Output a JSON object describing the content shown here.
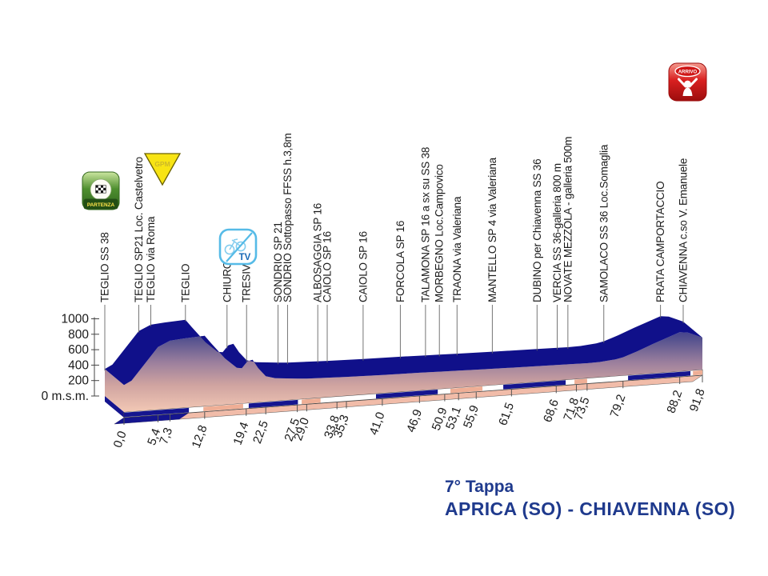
{
  "title": {
    "line1": "7° Tappa",
    "line2": "APRICA (SO) - CHIAVENNA (SO)"
  },
  "markers": {
    "partenza": {
      "label": "PARTENZA"
    },
    "gpm": {
      "label": "GPM"
    },
    "tv": {
      "label": "TV"
    },
    "arrivo": {
      "label": "ARRIVO"
    }
  },
  "chart_data": {
    "type": "area",
    "title": "7° Tappa APRICA (SO) - CHIAVENNA (SO) - altimetria",
    "ylabel": "m.s.m.",
    "ylim": [
      0,
      1000
    ],
    "xlim": [
      0,
      91.8
    ],
    "grid": false,
    "yticks": [
      {
        "value": 1000,
        "label": "1000"
      },
      {
        "value": 800,
        "label": "800"
      },
      {
        "value": 600,
        "label": "600"
      },
      {
        "value": 400,
        "label": "400"
      },
      {
        "value": 200,
        "label": "200"
      },
      {
        "value": 0,
        "label": "0 m.s.m."
      }
    ],
    "checkpoints": [
      {
        "km": 0.0,
        "km_label": "0,0",
        "label": "TEGLIO SS 38"
      },
      {
        "km": 5.4,
        "km_label": "5,4",
        "label": "TEGLIO SP21 Loc. Castelvetro"
      },
      {
        "km": 7.3,
        "km_label": "7,3",
        "label": "TEGLIO via Roma"
      },
      {
        "km": 12.8,
        "km_label": "12,8",
        "label": "TEGLIO"
      },
      {
        "km": 19.4,
        "km_label": "19,4",
        "label": "CHIURO"
      },
      {
        "km": 22.5,
        "km_label": "22,5",
        "label": "TRESIVIO"
      },
      {
        "km": 27.5,
        "km_label": "27,5",
        "label": "SONDRIO SP 21"
      },
      {
        "km": 29.0,
        "km_label": "29,0",
        "label": "SONDRIO Sottopasso FFSS h.3,8m"
      },
      {
        "km": 33.8,
        "km_label": "33,8",
        "label": "ALBOSAGGIA SP 16"
      },
      {
        "km": 35.3,
        "km_label": "35,3",
        "label": "CAIOLO SP 16"
      },
      {
        "km": 41.0,
        "km_label": "41,0",
        "label": "CAIOLO SP 16"
      },
      {
        "km": 46.9,
        "km_label": "46,9",
        "label": "FORCOLA SP 16"
      },
      {
        "km": 50.9,
        "km_label": "50,9",
        "label": "TALAMONA SP 16 a sx su SS 38"
      },
      {
        "km": 53.1,
        "km_label": "53,1",
        "label": "MORBEGNO Loc.Campovico"
      },
      {
        "km": 55.9,
        "km_label": "55,9",
        "label": "TRAONA via Valeriana"
      },
      {
        "km": 61.5,
        "km_label": "61,5",
        "label": "MANTELLO SP 4 via Valeriana"
      },
      {
        "km": 68.6,
        "km_label": "68,6",
        "label": "DUBINO per Chiavenna SS 36"
      },
      {
        "km": 71.8,
        "km_label": "71,8",
        "label": "VERCIA SS 36-galleria 800 m"
      },
      {
        "km": 73.5,
        "km_label": "73,5",
        "label": "NOVATE MEZZOLA - galleria 500m"
      },
      {
        "km": 79.2,
        "km_label": "79,2",
        "label": "SAMOLACO SS 36 Loc.Somaglia"
      },
      {
        "km": 88.2,
        "km_label": "88,2",
        "label": "PRATA CAMPORTACCIO"
      },
      {
        "km": 91.8,
        "km_label": "91,8",
        "label": "CHIAVENNA c.so V. Emanuele"
      }
    ],
    "profile": [
      {
        "km": 0.0,
        "m": 350
      },
      {
        "km": 1.2,
        "m": 400
      },
      {
        "km": 5.4,
        "m": 810
      },
      {
        "km": 7.3,
        "m": 880
      },
      {
        "km": 9.5,
        "m": 895
      },
      {
        "km": 12.8,
        "m": 910
      },
      {
        "km": 13.8,
        "m": 810
      },
      {
        "km": 16.0,
        "m": 600
      },
      {
        "km": 17.9,
        "m": 465
      },
      {
        "km": 18.7,
        "m": 455
      },
      {
        "km": 19.6,
        "m": 540
      },
      {
        "km": 20.4,
        "m": 555
      },
      {
        "km": 21.3,
        "m": 440
      },
      {
        "km": 22.5,
        "m": 330
      },
      {
        "km": 24.0,
        "m": 295
      },
      {
        "km": 27.5,
        "m": 268
      },
      {
        "km": 29.0,
        "m": 260
      },
      {
        "km": 33.8,
        "m": 248
      },
      {
        "km": 35.3,
        "m": 244
      },
      {
        "km": 41.0,
        "m": 235
      },
      {
        "km": 46.9,
        "m": 228
      },
      {
        "km": 50.9,
        "m": 222
      },
      {
        "km": 53.1,
        "m": 218
      },
      {
        "km": 55.9,
        "m": 214
      },
      {
        "km": 61.5,
        "m": 206
      },
      {
        "km": 68.6,
        "m": 198
      },
      {
        "km": 71.8,
        "m": 194
      },
      {
        "km": 73.5,
        "m": 192
      },
      {
        "km": 75.5,
        "m": 196
      },
      {
        "km": 78.0,
        "m": 215
      },
      {
        "km": 79.2,
        "m": 235
      },
      {
        "km": 81.5,
        "m": 300
      },
      {
        "km": 84.0,
        "m": 380
      },
      {
        "km": 86.0,
        "m": 440
      },
      {
        "km": 88.2,
        "m": 505
      },
      {
        "km": 89.5,
        "m": 492
      },
      {
        "km": 91.8,
        "m": 415
      }
    ],
    "road_segments": [
      {
        "from": 0.0,
        "to": 10.3,
        "color": "navy"
      },
      {
        "from": 12.6,
        "to": 18.9,
        "color": "salmon"
      },
      {
        "from": 19.8,
        "to": 27.6,
        "color": "navy"
      },
      {
        "from": 28.2,
        "to": 31.2,
        "color": "salmon"
      },
      {
        "from": 40.0,
        "to": 49.8,
        "color": "navy"
      },
      {
        "from": 51.8,
        "to": 56.9,
        "color": "salmon"
      },
      {
        "from": 60.2,
        "to": 70.1,
        "color": "navy"
      },
      {
        "from": 71.5,
        "to": 73.5,
        "color": "salmon"
      },
      {
        "from": 80.0,
        "to": 89.9,
        "color": "navy"
      },
      {
        "from": 90.3,
        "to": 91.8,
        "color": "salmon"
      }
    ],
    "colors": {
      "top_band": "#10108a",
      "face_top": "#26268a",
      "face_mid1": "#57538f",
      "face_mid2": "#9b7f9d",
      "face_mid3": "#cfa3a0",
      "face_bottom": "#f8ceb8",
      "road_navy": "#15158f",
      "road_salmon": "#efae95",
      "underside": "#f1bca9",
      "axis": "#444444",
      "label": "#1a1a1a",
      "title": "#1f3a8d",
      "gpm_fill": "#f8e414",
      "tv_blue": "#56bbe7",
      "tv_text": "#1668b5",
      "partenza_green": "#4e8f2f",
      "arrivo_red": "#cc1111"
    }
  }
}
